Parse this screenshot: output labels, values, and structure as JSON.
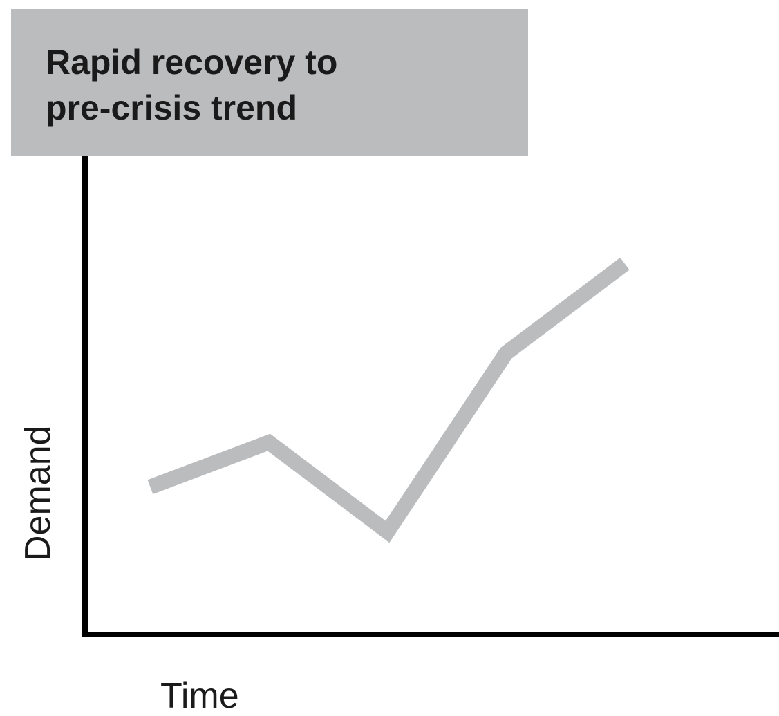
{
  "chart_data": {
    "type": "line",
    "title": [
      "Rapid recovery to",
      "pre-crisis trend"
    ],
    "xlabel": "Time",
    "ylabel": "Demand",
    "x": [
      1,
      2,
      3,
      4,
      5
    ],
    "series": [
      {
        "values": [
          40,
          50,
          30,
          70,
          90
        ]
      }
    ],
    "xlim": [
      0.45,
      6.3
    ],
    "ylim": [
      7,
      115
    ],
    "grid": false,
    "line_color": "#bbbcbe",
    "axis_color": "#000000",
    "title_bg": "#bbbcbe"
  }
}
